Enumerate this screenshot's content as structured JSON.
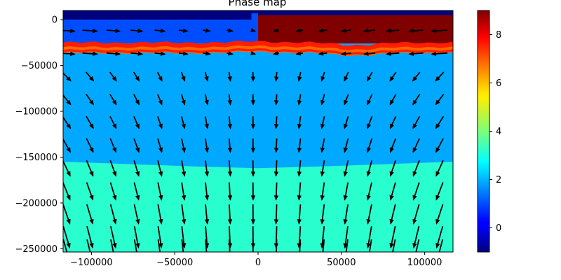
{
  "chart_data": {
    "type": "heatmap",
    "title": "Phase map",
    "xlabel": "",
    "ylabel": "",
    "xlim": [
      -117000,
      117000
    ],
    "ylim": [
      -253500,
      10000
    ],
    "x_ticks": [
      -100000,
      -50000,
      0,
      50000,
      100000
    ],
    "x_tick_labels": [
      "−100000",
      "−50000",
      "0",
      "50000",
      "100000"
    ],
    "y_ticks": [
      0,
      -50000,
      -100000,
      -150000,
      -200000,
      -250000
    ],
    "y_tick_labels": [
      "0",
      "−50000",
      "−100000",
      "−150000",
      "−200000",
      "−250000"
    ],
    "colorbar": {
      "colormap": "jet",
      "vmin": -1,
      "vmax": 9,
      "ticks": [
        0,
        2,
        4,
        6,
        8
      ],
      "tick_labels": [
        "0",
        "2",
        "4",
        "6",
        "8"
      ]
    },
    "phases": [
      {
        "value": -1,
        "region": "sticky air (top band)",
        "y_bottom": 0
      },
      {
        "value": 1,
        "region": "upper layer west of x=0",
        "y_bottom": -20000
      },
      {
        "value": 9,
        "region": "upper layer east of x=0",
        "y_bottom": -20000
      },
      {
        "value": 7,
        "region": "thin interface band",
        "y_bottom": -38000
      },
      {
        "value": 2,
        "region": "middle layer",
        "y_bottom": -160000
      },
      {
        "value": 3,
        "region": "bottom layer",
        "y_bottom": -253500
      }
    ],
    "layer_boundaries": {
      "x": [
        -117000,
        -80000,
        -40000,
        0,
        40000,
        80000,
        117000
      ],
      "middle_bottom_y": [
        -155000,
        -157500,
        -160000,
        -162000,
        -160000,
        -157500,
        -155000
      ]
    },
    "velocity_field": {
      "type": "quiver",
      "x": [
        -115000,
        -101000,
        -87000,
        -73000,
        -59000,
        -45000,
        -31000,
        -17000,
        -3000,
        11000,
        25000,
        39000,
        53000,
        67000,
        81000,
        95000,
        109000
      ],
      "y": [
        -12000,
        -37000,
        -62000,
        -87000,
        -112000,
        -137000,
        -162000,
        -187000,
        -212000,
        -237000,
        -252000
      ],
      "pattern": "flow converging toward x=0 and moving downward, strengthening with depth"
    }
  },
  "colors": {
    "phase_-1": "#00007f",
    "phase_1": "#004dff",
    "phase_2": "#00a9ff",
    "phase_3": "#29ffce",
    "phase_7": "#ff6800",
    "phase_9": "#800000",
    "interface_red": "#ff1e00"
  }
}
